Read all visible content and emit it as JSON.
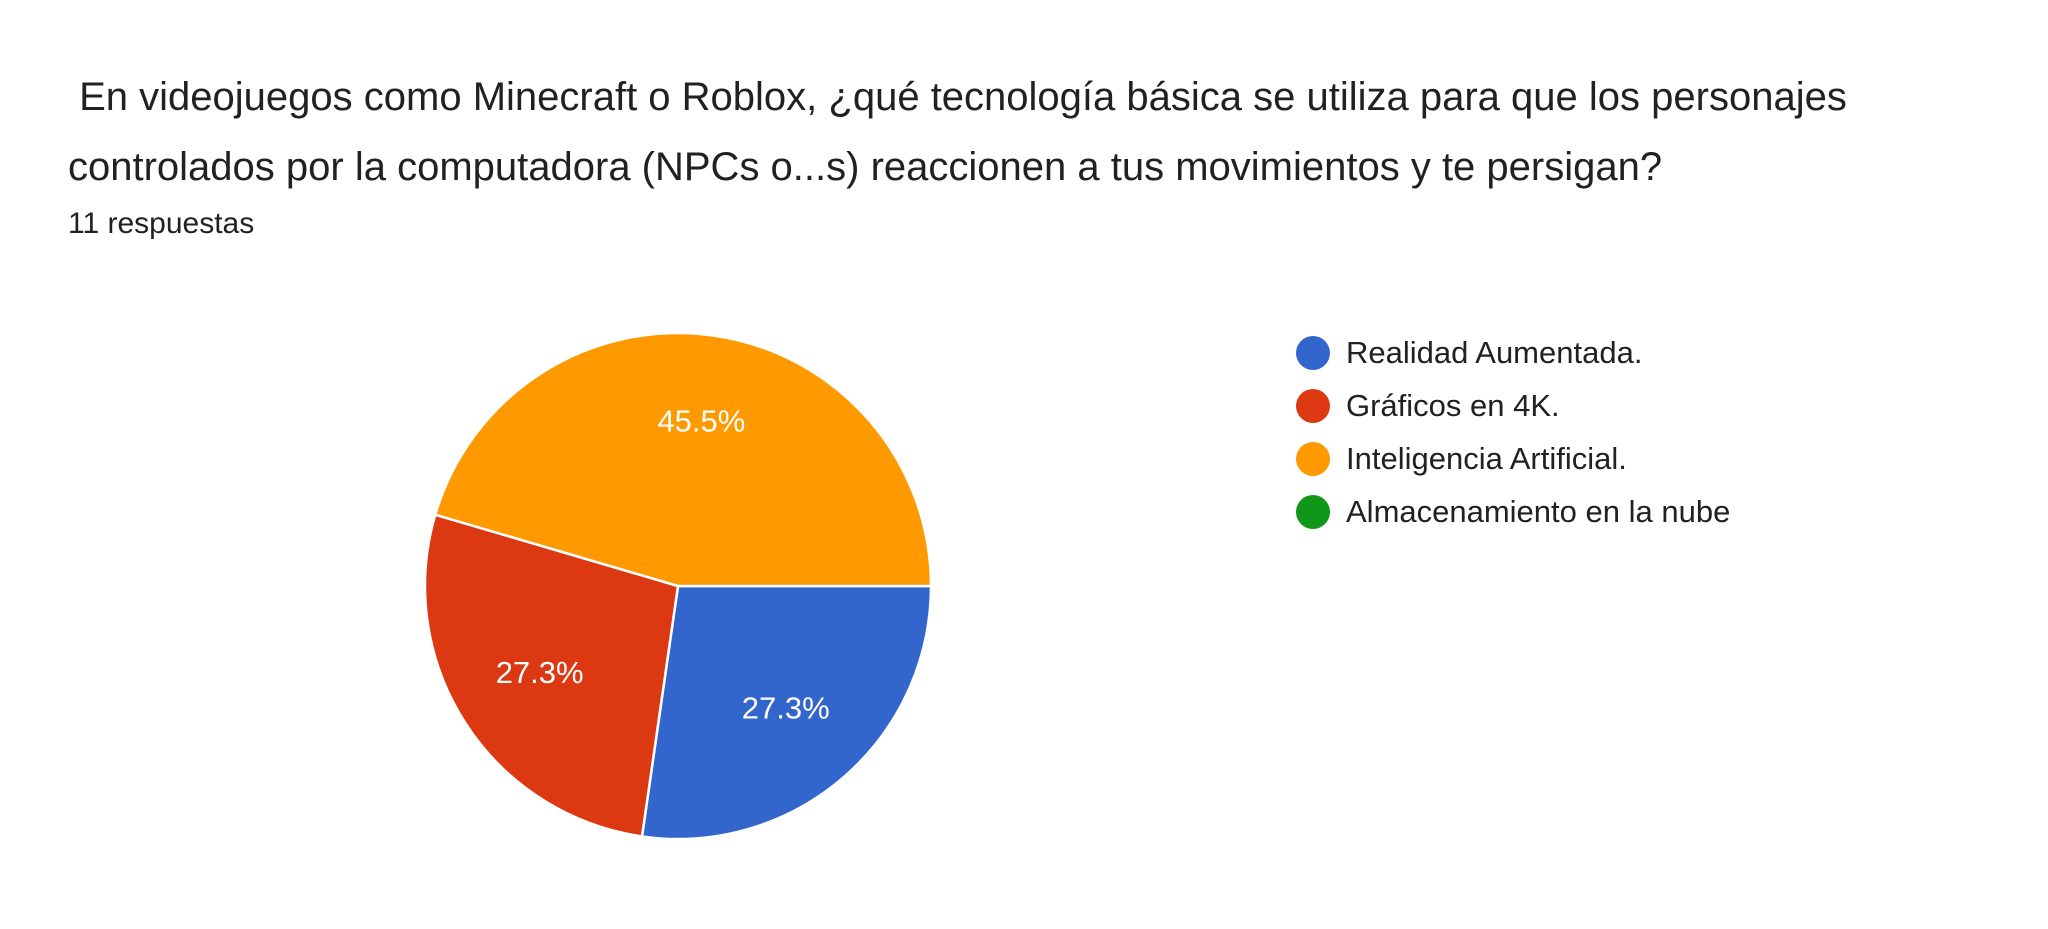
{
  "question": {
    "title": " En videojuegos como Minecraft o Roblox, ¿qué tecnología básica se utiliza para que los personajes controlados por la computadora (NPCs o...s) reaccionen a tus movimientos y te persigan?",
    "response_count": "11 respuestas"
  },
  "chart_data": {
    "type": "pie",
    "title": "",
    "total": 11,
    "categories": [
      "Realidad Aumentada.",
      "Gráficos en 4K.",
      "Inteligencia Artificial.",
      "Almacenamiento en la nube"
    ],
    "values": [
      3,
      3,
      5,
      0
    ],
    "percent_labels": [
      "27.3%",
      "27.3%",
      "45.5%",
      ""
    ],
    "colors": [
      "#3366cc",
      "#dc3912",
      "#ff9900",
      "#109618"
    ],
    "start_angle": "3 o'clock",
    "direction": "clockwise",
    "legend_position": "right"
  }
}
